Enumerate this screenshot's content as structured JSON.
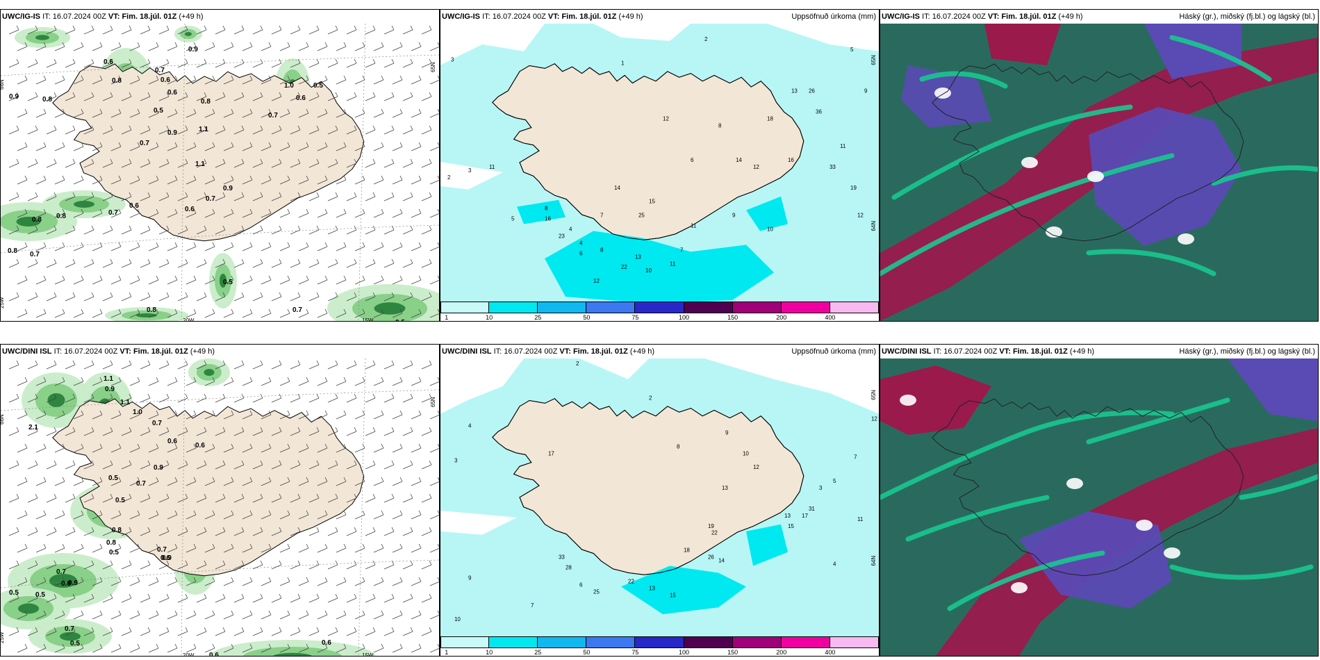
{
  "panels": [
    {
      "row": 0,
      "col": 0,
      "type": "precip_wind",
      "model": "UWC/IG-IS",
      "it_label": "IT:",
      "it_value": "16.07.2024 00Z",
      "vt_label": "VT:",
      "vt_value": "Fim. 18.júl. 01Z",
      "lead": "(+49 h)",
      "right_title": "",
      "grid_labels": [
        "66N",
        "65N",
        "20W",
        "15W",
        "25W"
      ],
      "values": [
        "0.9",
        "0.6",
        "0.9",
        "0.8",
        "0.7",
        "0.6",
        "0.8",
        "0.8",
        "0.6",
        "0.5",
        "1.0",
        "0.6",
        "0.5",
        "0.7",
        "1.1",
        "0.9",
        "0.7",
        "1.1",
        "0.9",
        "0.7",
        "0.6",
        "0.8",
        "0.8",
        "0.6",
        "0.7",
        "0.8",
        "0.7",
        "0.5",
        "0.8",
        "0.7",
        "0.5"
      ]
    },
    {
      "row": 0,
      "col": 1,
      "type": "accum",
      "model": "UWC/IG-IS",
      "it_label": "IT:",
      "it_value": "16.07.2024 00Z",
      "vt_label": "VT:",
      "vt_value": "Fim. 18.júl. 01Z",
      "lead": "(+49 h)",
      "right_title": "Uppsöfnuð úrkoma (mm)",
      "grid_labels": [
        "65N",
        "64N"
      ],
      "values": [
        "2",
        "3",
        "1",
        "2",
        "3",
        "11",
        "12",
        "4",
        "5",
        "16",
        "8",
        "13",
        "11",
        "12",
        "22",
        "10",
        "7",
        "6",
        "8",
        "9",
        "12",
        "18",
        "16",
        "26",
        "33",
        "19",
        "23",
        "4",
        "6",
        "7",
        "8",
        "11",
        "15",
        "25",
        "14",
        "14",
        "10",
        "13",
        "36",
        "11",
        "12",
        "5",
        "9"
      ]
    },
    {
      "row": 0,
      "col": 2,
      "type": "clouds",
      "model": "UWC/IG-IS",
      "it_label": "IT:",
      "it_value": "16.07.2024 00Z",
      "vt_label": "VT:",
      "vt_value": "Fim. 18.júl. 01Z",
      "lead": "(+49 h)",
      "right_title": "Háský (gr.), miðský (fj.bl.) og lágský (bl.)"
    },
    {
      "row": 1,
      "col": 0,
      "type": "precip_wind",
      "model": "UWC/DINI ISL",
      "it_label": "IT:",
      "it_value": "16.07.2024 00Z",
      "vt_label": "VT:",
      "vt_value": "Fim. 18.júl. 01Z",
      "lead": "(+49 h)",
      "right_title": "",
      "grid_labels": [
        "66N",
        "65N",
        "20W",
        "15W",
        "25W"
      ],
      "values": [
        "1.1",
        "0.9",
        "1.1",
        "1.0",
        "0.7",
        "0.6",
        "0.6",
        "0.9",
        "0.5",
        "0.7",
        "0.5",
        "0.8",
        "0.8",
        "0.6",
        "0.5",
        "0.7",
        "0.9",
        "0.7",
        "0.8",
        "0.9",
        "0.5",
        "0.5",
        "0.7",
        "0.5",
        "0.6",
        "0.6",
        "2.1"
      ]
    },
    {
      "row": 1,
      "col": 1,
      "type": "accum",
      "model": "UWC/DINI ISL",
      "it_label": "IT:",
      "it_value": "16.07.2024 00Z",
      "vt_label": "VT:",
      "vt_value": "Fim. 18.júl. 01Z",
      "lead": "(+49 h)",
      "right_title": "Uppsöfnuð úrkoma (mm)",
      "grid_labels": [
        "65N",
        "64N"
      ],
      "values": [
        "2",
        "4",
        "3",
        "2",
        "17",
        "8",
        "9",
        "10",
        "12",
        "13",
        "19",
        "22",
        "26",
        "33",
        "28",
        "13",
        "15",
        "17",
        "31",
        "12",
        "7",
        "5",
        "3",
        "6",
        "11",
        "14",
        "18",
        "22",
        "25",
        "13",
        "15",
        "4",
        "7",
        "10",
        "9"
      ]
    },
    {
      "row": 1,
      "col": 2,
      "type": "clouds",
      "model": "UWC/DINI ISL",
      "it_label": "IT:",
      "it_value": "16.07.2024 00Z",
      "vt_label": "VT:",
      "vt_value": "Fim. 18.júl. 01Z",
      "lead": "(+49 h)",
      "right_title": "Háský (gr.), miðský (fj.bl.) og lágský (bl.)"
    }
  ],
  "colorbar": {
    "ticks": [
      "1",
      "10",
      "25",
      "50",
      "75",
      "100",
      "150",
      "200",
      "400"
    ],
    "colors": [
      "#c8fafa",
      "#00e8f0",
      "#10b8f0",
      "#3c78f0",
      "#2828c8",
      "#500050",
      "#a00078",
      "#f000a0",
      "#f8b8f0"
    ]
  },
  "colors": {
    "land": "#f2e6d6",
    "ocean_accum": "#b8f6f6",
    "cyan_accum": "#00e8f0",
    "green_light": "#c8ecc8",
    "green_mid": "#78c878",
    "green_dark": "#1e7832",
    "cloud_bg": "#2a6a5e",
    "cloud_high": "#9a1a4c",
    "cloud_mid": "#5a4ab4",
    "cloud_low": "#18c890"
  }
}
